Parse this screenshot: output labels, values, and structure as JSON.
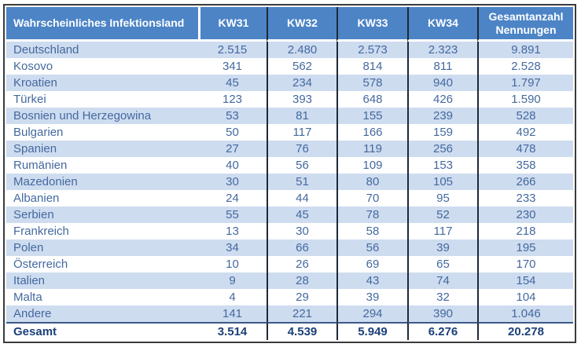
{
  "table": {
    "columns": [
      "Wahrscheinliches Infektionsland",
      "KW31",
      "KW32",
      "KW33",
      "KW34",
      "Gesamtanzahl Nennungen"
    ],
    "rows": [
      {
        "country": "Deutschland",
        "values": [
          "2.515",
          "2.480",
          "2.573",
          "2.323",
          "9.891"
        ]
      },
      {
        "country": "Kosovo",
        "values": [
          "341",
          "562",
          "814",
          "811",
          "2.528"
        ]
      },
      {
        "country": "Kroatien",
        "values": [
          "45",
          "234",
          "578",
          "940",
          "1.797"
        ]
      },
      {
        "country": "Türkei",
        "values": [
          "123",
          "393",
          "648",
          "426",
          "1.590"
        ]
      },
      {
        "country": "Bosnien und Herzegowina",
        "values": [
          "53",
          "81",
          "155",
          "239",
          "528"
        ]
      },
      {
        "country": "Bulgarien",
        "values": [
          "50",
          "117",
          "166",
          "159",
          "492"
        ]
      },
      {
        "country": "Spanien",
        "values": [
          "27",
          "76",
          "119",
          "256",
          "478"
        ]
      },
      {
        "country": "Rumänien",
        "values": [
          "40",
          "56",
          "109",
          "153",
          "358"
        ]
      },
      {
        "country": "Mazedonien",
        "values": [
          "30",
          "51",
          "80",
          "105",
          "266"
        ]
      },
      {
        "country": "Albanien",
        "values": [
          "24",
          "44",
          "70",
          "95",
          "233"
        ]
      },
      {
        "country": "Serbien",
        "values": [
          "55",
          "45",
          "78",
          "52",
          "230"
        ]
      },
      {
        "country": "Frankreich",
        "values": [
          "13",
          "30",
          "58",
          "117",
          "218"
        ]
      },
      {
        "country": "Polen",
        "values": [
          "34",
          "66",
          "56",
          "39",
          "195"
        ]
      },
      {
        "country": "Österreich",
        "values": [
          "10",
          "26",
          "69",
          "65",
          "170"
        ]
      },
      {
        "country": "Italien",
        "values": [
          "9",
          "28",
          "43",
          "74",
          "154"
        ]
      },
      {
        "country": "Malta",
        "values": [
          "4",
          "29",
          "39",
          "32",
          "104"
        ]
      },
      {
        "country": "Andere",
        "values": [
          "141",
          "221",
          "294",
          "390",
          "1.046"
        ]
      }
    ],
    "total": {
      "label": "Gesamt",
      "values": [
        "3.514",
        "4.539",
        "5.949",
        "6.276",
        "20.278"
      ]
    }
  },
  "colors": {
    "header_bg": "#4c84c6",
    "header_text": "#ffffff",
    "row_stripe": "#cedcf0",
    "row_alt": "#ffffff",
    "body_text": "#44699e",
    "total_text": "#1c4079",
    "outer_border": "#3b3b3b",
    "column_line": "#1f2937",
    "total_rule": "#3a5a88"
  }
}
